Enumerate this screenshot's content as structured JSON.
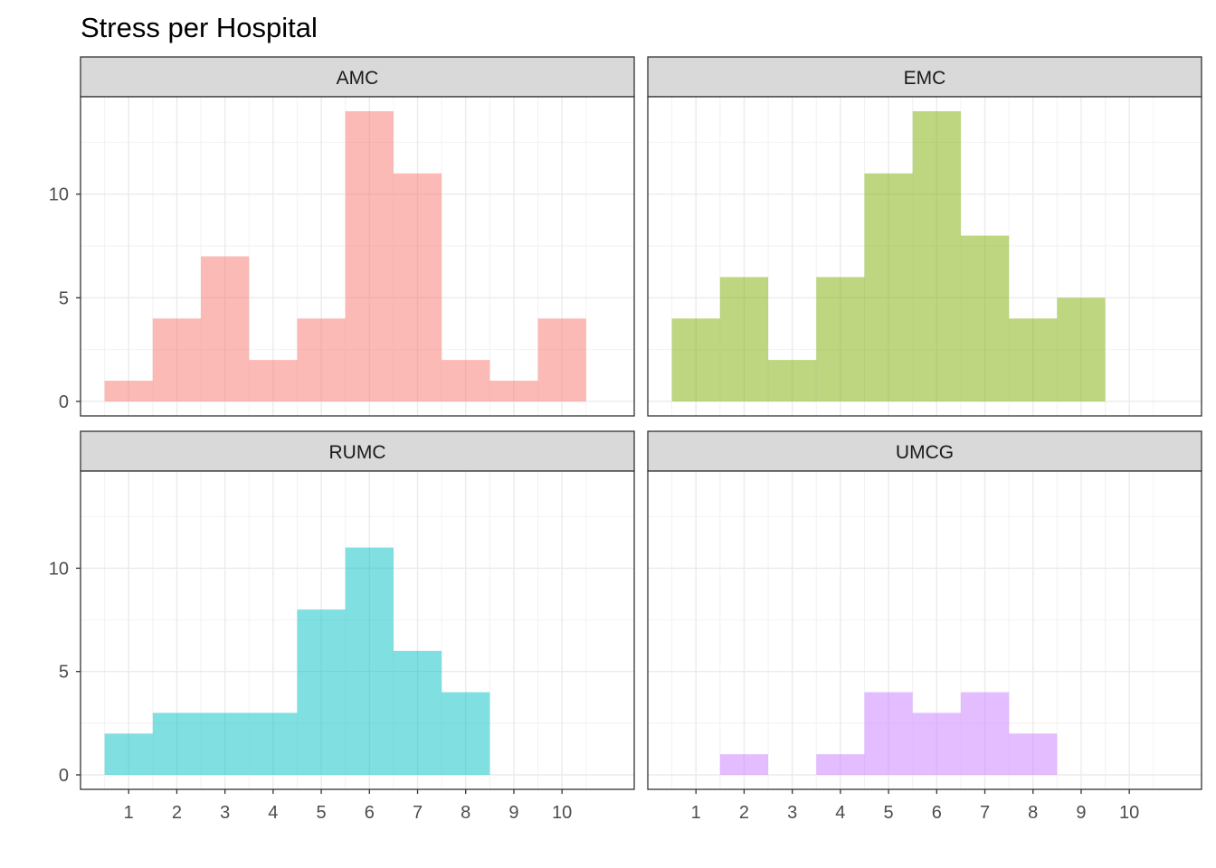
{
  "chart_data": {
    "type": "bar",
    "title": "Stress per Hospital",
    "xlabel": "",
    "ylabel": "",
    "x_ticks": [
      "1",
      "2",
      "3",
      "4",
      "5",
      "6",
      "7",
      "8",
      "9",
      "10"
    ],
    "y_ticks": [
      "0",
      "5",
      "10"
    ],
    "xlim": [
      0.5,
      10.5
    ],
    "ylim": [
      0,
      14
    ],
    "grid": true,
    "panels": [
      {
        "name": "AMC",
        "color": "#F8766D",
        "bins": [
          1,
          2,
          3,
          4,
          5,
          6,
          7,
          8,
          9,
          10
        ],
        "counts": [
          1,
          4,
          7,
          2,
          4,
          14,
          11,
          2,
          1,
          4
        ]
      },
      {
        "name": "EMC",
        "color": "#7CAE00",
        "bins": [
          1,
          2,
          3,
          4,
          5,
          6,
          7,
          8,
          9
        ],
        "counts": [
          4,
          6,
          2,
          6,
          11,
          14,
          8,
          4,
          5
        ]
      },
      {
        "name": "RUMC",
        "color": "#00BFC4",
        "bins": [
          1,
          2,
          3,
          4,
          5,
          6,
          7,
          8
        ],
        "counts": [
          2,
          3,
          3,
          3,
          8,
          11,
          6,
          4
        ]
      },
      {
        "name": "UMCG",
        "color": "#C77CFF",
        "bins": [
          2,
          4,
          5,
          6,
          7,
          8
        ],
        "counts": [
          1,
          1,
          4,
          3,
          4,
          2
        ]
      }
    ]
  }
}
